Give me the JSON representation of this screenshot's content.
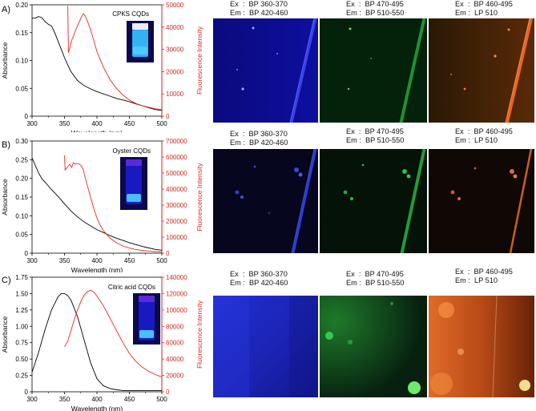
{
  "chart_data": [
    {
      "type": "line",
      "panel_label": "A)",
      "title": "",
      "inset_label": "CPKS CQDs",
      "xlabel": "Wavelength (nm)",
      "ylabel_left": "Absorbance",
      "ylabel_right": "Fluorescence Intensity",
      "xlim": [
        300,
        500
      ],
      "ylim_left": [
        0,
        0.2
      ],
      "ylim_right": [
        0,
        50000
      ],
      "x_ticks": [
        "300",
        "350",
        "400",
        "450",
        "500"
      ],
      "y_ticks_left": [
        "0",
        "0.05",
        "0.10",
        "0.15",
        "0.20"
      ],
      "y_ticks_right": [
        "0",
        "10000",
        "20000",
        "30000",
        "40000",
        "50000"
      ],
      "series": [
        {
          "axis": "left",
          "color": "#000000",
          "x": [
            300,
            305,
            310,
            315,
            320,
            325,
            330,
            335,
            340,
            345,
            350,
            355,
            360,
            370,
            380,
            390,
            400,
            410,
            420,
            430,
            440,
            450,
            460,
            470,
            480,
            490,
            500
          ],
          "y": [
            0.176,
            0.176,
            0.179,
            0.177,
            0.17,
            0.165,
            0.162,
            0.15,
            0.135,
            0.12,
            0.105,
            0.092,
            0.08,
            0.064,
            0.055,
            0.049,
            0.044,
            0.04,
            0.036,
            0.032,
            0.029,
            0.026,
            0.022,
            0.019,
            0.015,
            0.012,
            0.01
          ]
        },
        {
          "axis": "right",
          "color": "#e8281e",
          "x": [
            355,
            356,
            358,
            361,
            364,
            367,
            370,
            373,
            376,
            379,
            382,
            385,
            390,
            395,
            400,
            410,
            420,
            430,
            440,
            450,
            460,
            470,
            480,
            490,
            500
          ],
          "y": [
            49500,
            28500,
            30500,
            34000,
            36000,
            38500,
            40500,
            42500,
            44500,
            46000,
            45000,
            43000,
            39000,
            34000,
            29000,
            22000,
            16500,
            12500,
            9500,
            7300,
            5700,
            4700,
            4000,
            3300,
            3000
          ]
        }
      ]
    },
    {
      "type": "line",
      "panel_label": "B)",
      "title": "",
      "inset_label": "Oyster CQDs",
      "xlabel": "Wavelength (nm)",
      "ylabel_left": "Absorbance",
      "ylabel_right": "Fluorescence Intensity",
      "xlim": [
        300,
        500
      ],
      "ylim_left": [
        0,
        0.3
      ],
      "ylim_right": [
        0,
        700000
      ],
      "x_ticks": [
        "300",
        "350",
        "400",
        "450",
        "500"
      ],
      "y_ticks_left": [
        "0",
        "0.05",
        "0.10",
        "0.15",
        "0.20",
        "0.25",
        "0.30"
      ],
      "y_ticks_right": [
        "0",
        "100000",
        "200000",
        "300000",
        "400000",
        "500000",
        "600000",
        "700000"
      ],
      "series": [
        {
          "axis": "left",
          "color": "#000000",
          "x": [
            300,
            305,
            310,
            315,
            320,
            325,
            330,
            340,
            350,
            360,
            370,
            380,
            390,
            400,
            410,
            420,
            430,
            440,
            450,
            460,
            470,
            480,
            490,
            500
          ],
          "y": [
            0.255,
            0.235,
            0.215,
            0.2,
            0.19,
            0.18,
            0.17,
            0.152,
            0.132,
            0.113,
            0.097,
            0.084,
            0.073,
            0.063,
            0.055,
            0.047,
            0.04,
            0.034,
            0.028,
            0.023,
            0.018,
            0.014,
            0.01,
            0.008
          ]
        },
        {
          "axis": "right",
          "color": "#e8281e",
          "x": [
            350,
            351,
            355,
            358,
            361,
            364,
            367,
            370,
            373,
            376,
            379,
            382,
            386,
            390,
            395,
            400,
            405,
            410,
            420,
            430,
            440,
            450,
            460,
            470,
            480,
            490,
            500
          ],
          "y": [
            610000,
            520000,
            540000,
            555000,
            535000,
            565000,
            555000,
            560000,
            555000,
            545000,
            520000,
            470000,
            410000,
            350000,
            280000,
            220000,
            175000,
            140000,
            95000,
            65000,
            45000,
            32000,
            23000,
            17000,
            13000,
            10000,
            8000
          ]
        }
      ]
    },
    {
      "type": "line",
      "panel_label": "C)",
      "title": "",
      "inset_label": "Citric acid CQDs",
      "xlabel": "Wavelength (nm)",
      "ylabel_left": "Absorbance",
      "ylabel_right": "Fluorescence Intensity",
      "xlim": [
        300,
        500
      ],
      "ylim_left": [
        0,
        1.75
      ],
      "ylim_right": [
        0,
        140000
      ],
      "x_ticks": [
        "300",
        "350",
        "400",
        "450",
        "500"
      ],
      "y_ticks_left": [
        "0",
        "0.25",
        "0.50",
        "0.75",
        "1.00",
        "1.25",
        "1.50",
        "1.75"
      ],
      "y_ticks_right": [
        "0",
        "20000",
        "40000",
        "60000",
        "80000",
        "100000",
        "120000",
        "140000"
      ],
      "series": [
        {
          "axis": "left",
          "color": "#000000",
          "x": [
            300,
            310,
            320,
            330,
            340,
            345,
            350,
            355,
            360,
            370,
            380,
            390,
            400,
            410,
            420,
            430,
            440,
            450,
            460,
            480,
            500
          ],
          "y": [
            0.3,
            0.6,
            0.95,
            1.25,
            1.45,
            1.5,
            1.5,
            1.47,
            1.4,
            1.15,
            0.8,
            0.45,
            0.2,
            0.09,
            0.05,
            0.03,
            0.02,
            0.02,
            0.02,
            0.02,
            0.02
          ]
        },
        {
          "axis": "right",
          "color": "#e8281e",
          "x": [
            350,
            355,
            360,
            365,
            370,
            375,
            380,
            385,
            390,
            395,
            400,
            410,
            420,
            430,
            440,
            450,
            460,
            470,
            480,
            490,
            500
          ],
          "y": [
            55000,
            62000,
            75000,
            88000,
            100000,
            110000,
            118000,
            122000,
            124000,
            122000,
            117000,
            105000,
            90000,
            75000,
            60000,
            47000,
            37000,
            30000,
            25000,
            21000,
            18000
          ]
        }
      ]
    }
  ],
  "micrographs": [
    [
      {
        "ex": "Ex  :  BP 360-370",
        "em": "Em :  BP 420-460",
        "channel": "blue"
      },
      {
        "ex": "Ex  :  BP 470-495",
        "em": "Em :  BP 510-550",
        "channel": "green"
      },
      {
        "ex": "Ex  :  BP 460-495",
        "em": "Em :  LP 510",
        "channel": "red"
      }
    ],
    [
      {
        "ex": "Ex  :  BP 360-370",
        "em": "Em :  BP 420-460",
        "channel": "blue"
      },
      {
        "ex": "Ex  :  BP 470-495",
        "em": "Em :  BP 510-550",
        "channel": "green"
      },
      {
        "ex": "Ex  :  BP 460-495",
        "em": "Em :  LP 510",
        "channel": "red"
      }
    ],
    [
      {
        "ex": "Ex  :  BP 360-370",
        "em": "Em :  BP 420-460",
        "channel": "blue"
      },
      {
        "ex": "Ex  :  BP 470-495",
        "em": "Em :  BP 510-550",
        "channel": "green"
      },
      {
        "ex": "Ex  :  BP 460-495",
        "em": "Em :  LP 510",
        "channel": "red"
      }
    ]
  ],
  "colors": {
    "absorbance": "#000000",
    "fluorescence": "#e8281e",
    "right_axis": "#d42a1e"
  }
}
